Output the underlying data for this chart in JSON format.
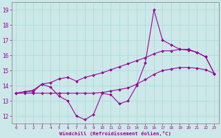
{
  "xlabel": "Windchill (Refroidissement éolien,°C)",
  "bg_color": "#cde8e8",
  "line_color": "#990099",
  "grid_color": "#aadddd",
  "spine_color": "#888888",
  "xlim": [
    -0.5,
    23.5
  ],
  "ylim": [
    11.5,
    19.5
  ],
  "yticks": [
    12,
    13,
    14,
    15,
    16,
    17,
    18,
    19
  ],
  "xticks": [
    0,
    1,
    2,
    3,
    4,
    5,
    6,
    7,
    8,
    9,
    10,
    11,
    12,
    13,
    14,
    15,
    16,
    17,
    18,
    19,
    20,
    21,
    22,
    23
  ],
  "line1_y": [
    13.5,
    13.6,
    13.6,
    14.1,
    13.9,
    13.3,
    13.0,
    12.0,
    11.75,
    12.1,
    13.5,
    13.4,
    12.8,
    13.0,
    14.0,
    15.5,
    19.0,
    17.0,
    16.7,
    16.4,
    16.4,
    16.2,
    15.9,
    14.8
  ],
  "line2_y": [
    13.5,
    13.6,
    13.7,
    14.1,
    14.2,
    14.45,
    14.55,
    14.3,
    14.55,
    14.7,
    14.85,
    15.05,
    15.25,
    15.45,
    15.65,
    15.85,
    16.1,
    16.3,
    16.3,
    16.4,
    16.35,
    16.2,
    15.9,
    14.8
  ],
  "line3_y": [
    13.5,
    13.5,
    13.5,
    13.5,
    13.5,
    13.5,
    13.5,
    13.5,
    13.5,
    13.5,
    13.55,
    13.65,
    13.75,
    13.85,
    14.1,
    14.4,
    14.75,
    15.0,
    15.1,
    15.2,
    15.2,
    15.15,
    15.05,
    14.8
  ]
}
